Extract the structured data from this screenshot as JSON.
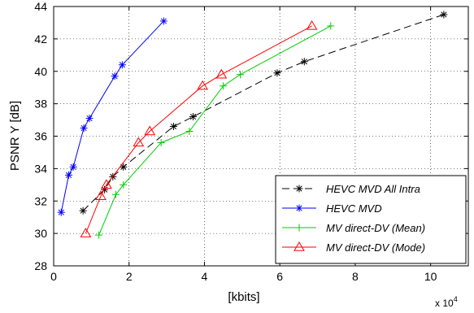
{
  "chart_data": {
    "type": "line",
    "xlabel": "[kbits]",
    "ylabel": "PSNR Y [dB]",
    "x_multiplier": {
      "base": "x 10",
      "exponent": "4"
    },
    "xlim": [
      0,
      11
    ],
    "ylim": [
      28,
      44
    ],
    "grid": true,
    "legend_position": "bottom-right",
    "x_ticks": [
      0,
      2,
      4,
      6,
      8,
      10
    ],
    "y_ticks": [
      28,
      30,
      32,
      34,
      36,
      38,
      40,
      42,
      44
    ],
    "x_tick_labels": [
      "0",
      "2",
      "4",
      "6",
      "8",
      "10"
    ],
    "y_tick_labels": [
      "28",
      "30",
      "32",
      "34",
      "36",
      "38",
      "40",
      "42",
      "44"
    ],
    "series": [
      {
        "name": "HEVC MVD All Intra",
        "color": "#000000",
        "line_style": "dashed",
        "marker": "asterisk",
        "x": [
          0.78,
          1.35,
          1.57,
          1.85,
          3.18,
          3.7,
          5.93,
          6.65,
          10.35
        ],
        "y": [
          31.4,
          32.7,
          33.5,
          34.1,
          36.6,
          37.2,
          39.9,
          40.6,
          43.5
        ]
      },
      {
        "name": "HEVC MVD",
        "color": "#0000ff",
        "line_style": "solid",
        "marker": "asterisk",
        "x": [
          0.2,
          0.4,
          0.52,
          0.8,
          0.95,
          1.62,
          1.82,
          2.92
        ],
        "y": [
          31.3,
          33.6,
          34.1,
          36.5,
          37.1,
          39.7,
          40.4,
          43.1
        ]
      },
      {
        "name": "MV direct-DV (Mean)",
        "color": "#00cc00",
        "line_style": "solid",
        "marker": "plus",
        "x": [
          1.2,
          1.65,
          1.85,
          2.85,
          3.6,
          4.5,
          4.95,
          7.35
        ],
        "y": [
          29.9,
          32.4,
          33.0,
          35.6,
          36.3,
          39.1,
          39.8,
          42.8
        ]
      },
      {
        "name": "MV direct-DV (Mode)",
        "color": "#ff0000",
        "line_style": "solid",
        "marker": "triangle",
        "x": [
          0.85,
          1.25,
          1.4,
          2.25,
          2.55,
          3.95,
          4.45,
          6.85
        ],
        "y": [
          30.0,
          32.3,
          33.0,
          35.6,
          36.3,
          39.1,
          39.8,
          42.8
        ]
      }
    ]
  }
}
